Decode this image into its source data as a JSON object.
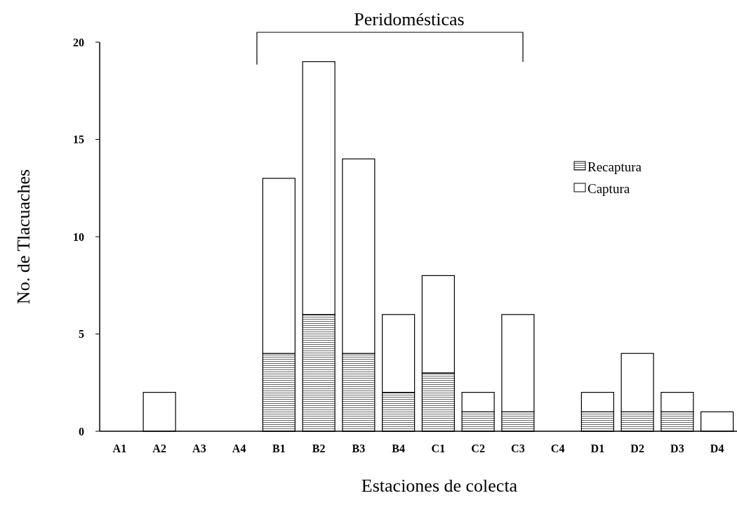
{
  "chart_data": {
    "type": "bar",
    "stacked": true,
    "xlabel": "Estaciones de colecta",
    "ylabel": "No. de Tlacuaches",
    "annotations": [
      "Peridomésticas"
    ],
    "categories": [
      "A1",
      "A2",
      "A3",
      "A4",
      "B1",
      "B2",
      "B3",
      "B4",
      "C1",
      "C2",
      "C3",
      "C4",
      "D1",
      "D2",
      "D3",
      "D4"
    ],
    "series": [
      {
        "name": "Recaptura",
        "color": "#000000",
        "values": [
          0,
          0,
          0,
          0,
          4,
          6,
          4,
          2,
          3,
          1,
          1,
          0,
          1,
          1,
          1,
          0
        ]
      },
      {
        "name": "Captura",
        "color": "#ffffff",
        "values": [
          0,
          2,
          0,
          0,
          9,
          13,
          10,
          4,
          5,
          1,
          5,
          0,
          1,
          3,
          1,
          1
        ]
      }
    ],
    "ylim": [
      0,
      20
    ],
    "yticks": [
      0,
      5,
      10,
      15,
      20
    ],
    "legend": "top right",
    "grid": false
  }
}
